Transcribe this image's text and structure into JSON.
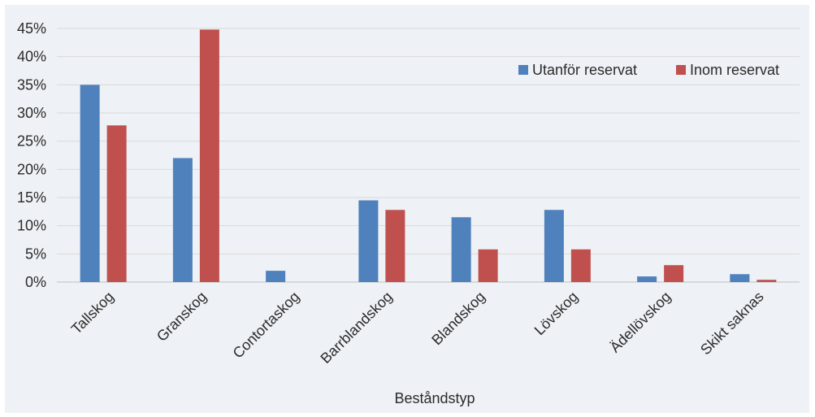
{
  "chart_data": {
    "type": "bar",
    "categories": [
      "Tallskog",
      "Granskog",
      "Contortaskog",
      "Barrblandskog",
      "Blandskog",
      "Lövskog",
      "Ädellövskog",
      "Skikt saknas"
    ],
    "series": [
      {
        "name": "Utanför reservat",
        "color": "#4f81bd",
        "values": [
          35.0,
          22.0,
          2.0,
          14.5,
          11.5,
          12.8,
          1.0,
          1.4
        ]
      },
      {
        "name": "Inom reservat",
        "color": "#c0504d",
        "values": [
          27.8,
          44.8,
          0.0,
          12.8,
          5.8,
          5.8,
          3.0,
          0.4
        ]
      }
    ],
    "xlabel": "Beståndstyp",
    "ylabel": "",
    "ylim": [
      0,
      45
    ],
    "yticks": [
      "0%",
      "5%",
      "10%",
      "15%",
      "20%",
      "25%",
      "30%",
      "35%",
      "40%",
      "45%"
    ],
    "grid": true,
    "legend": "top-right"
  }
}
